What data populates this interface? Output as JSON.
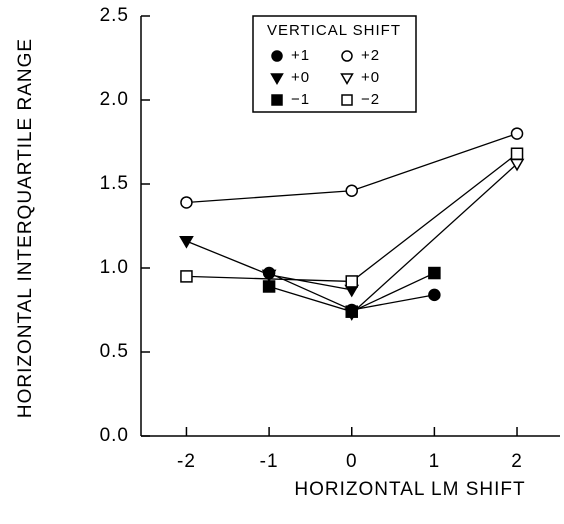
{
  "chart_data": {
    "type": "line",
    "xlabel": "HORIZONTAL LM SHIFT",
    "ylabel": "HORIZONTAL INTERQUARTILE RANGE",
    "legend_title": "VERTICAL SHIFT",
    "legend_position": "upper center",
    "xlim": [
      -2.55,
      2.52
    ],
    "xticks": [
      -2,
      -1,
      0,
      1,
      2
    ],
    "ylim": [
      0,
      2.5
    ],
    "yticks": [
      {
        "value": 0,
        "label": "0.0"
      },
      0.5,
      {
        "value": 1,
        "label": "1.0"
      },
      1.5,
      {
        "value": 2,
        "label": "2.0"
      },
      2.5
    ],
    "series": [
      {
        "name": "+1",
        "color": "#000000",
        "marker": "circle",
        "filled": true,
        "x": [
          -1,
          0,
          1
        ],
        "values": [
          0.97,
          0.75,
          0.84
        ]
      },
      {
        "name": "+2",
        "color": "#000000",
        "marker": "circle",
        "filled": false,
        "x": [
          -2,
          0,
          2
        ],
        "values": [
          1.39,
          1.46,
          1.8
        ]
      },
      {
        "name": "+0",
        "color": "#000000",
        "marker": "triangle",
        "filled": true,
        "x": [
          -2,
          -1,
          0
        ],
        "values": [
          1.16,
          0.96,
          0.87
        ]
      },
      {
        "name": "+0",
        "color": "#000000",
        "marker": "triangle",
        "filled": false,
        "x": [
          0,
          2
        ],
        "values": [
          0.73,
          1.62
        ]
      },
      {
        "name": "−1",
        "color": "#000000",
        "marker": "square",
        "filled": true,
        "x": [
          -1,
          0,
          1
        ],
        "values": [
          0.89,
          0.74,
          0.97
        ]
      },
      {
        "name": "−2",
        "color": "#000000",
        "marker": "square",
        "filled": false,
        "x": [
          -2,
          0,
          2
        ],
        "values": [
          0.95,
          0.92,
          1.68
        ]
      }
    ]
  }
}
